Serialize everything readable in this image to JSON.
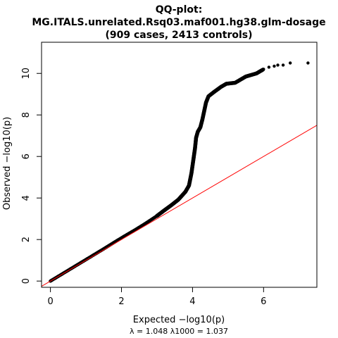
{
  "chart_data": {
    "type": "scatter",
    "title_lines": [
      "QQ-plot:",
      "MG.ITALS.unrelated.Rsq03.maf001.hg38.glm-dosage",
      "(909 cases, 2413 controls)"
    ],
    "xlabel": "Expected  −log10(p)",
    "ylabel": "Observed  −log10(p)",
    "xlim": [
      -0.25,
      7.5
    ],
    "ylim": [
      -0.3,
      11.5
    ],
    "x_ticks": [
      0,
      2,
      4,
      6
    ],
    "y_ticks": [
      0,
      2,
      4,
      6,
      8,
      10
    ],
    "lambda_text": "λ = 1.048  λ1000 = 1.037",
    "reference_line": {
      "slope": 1,
      "intercept": 0,
      "color": "#ff0000"
    },
    "point_color": "#000000",
    "grid": false,
    "points": [
      [
        0.0,
        0.0
      ],
      [
        0.3,
        0.31
      ],
      [
        0.6,
        0.62
      ],
      [
        0.9,
        0.93
      ],
      [
        1.2,
        1.24
      ],
      [
        1.5,
        1.55
      ],
      [
        1.8,
        1.87
      ],
      [
        2.1,
        2.18
      ],
      [
        2.4,
        2.48
      ],
      [
        2.7,
        2.8
      ],
      [
        3.0,
        3.14
      ],
      [
        3.2,
        3.4
      ],
      [
        3.4,
        3.65
      ],
      [
        3.6,
        3.92
      ],
      [
        3.8,
        4.3
      ],
      [
        3.9,
        4.6
      ],
      [
        3.97,
        5.2
      ],
      [
        4.02,
        5.8
      ],
      [
        4.07,
        6.4
      ],
      [
        4.1,
        6.9
      ],
      [
        4.15,
        7.2
      ],
      [
        4.22,
        7.4
      ],
      [
        4.28,
        7.8
      ],
      [
        4.33,
        8.2
      ],
      [
        4.38,
        8.6
      ],
      [
        4.45,
        8.9
      ],
      [
        4.6,
        9.1
      ],
      [
        4.8,
        9.35
      ],
      [
        4.95,
        9.5
      ],
      [
        5.2,
        9.55
      ],
      [
        5.5,
        9.85
      ],
      [
        5.8,
        10.0
      ],
      [
        6.0,
        10.2
      ],
      [
        6.15,
        10.3
      ],
      [
        6.3,
        10.35
      ],
      [
        6.4,
        10.4
      ],
      [
        6.55,
        10.4
      ],
      [
        6.75,
        10.5
      ],
      [
        7.25,
        10.5
      ]
    ]
  }
}
